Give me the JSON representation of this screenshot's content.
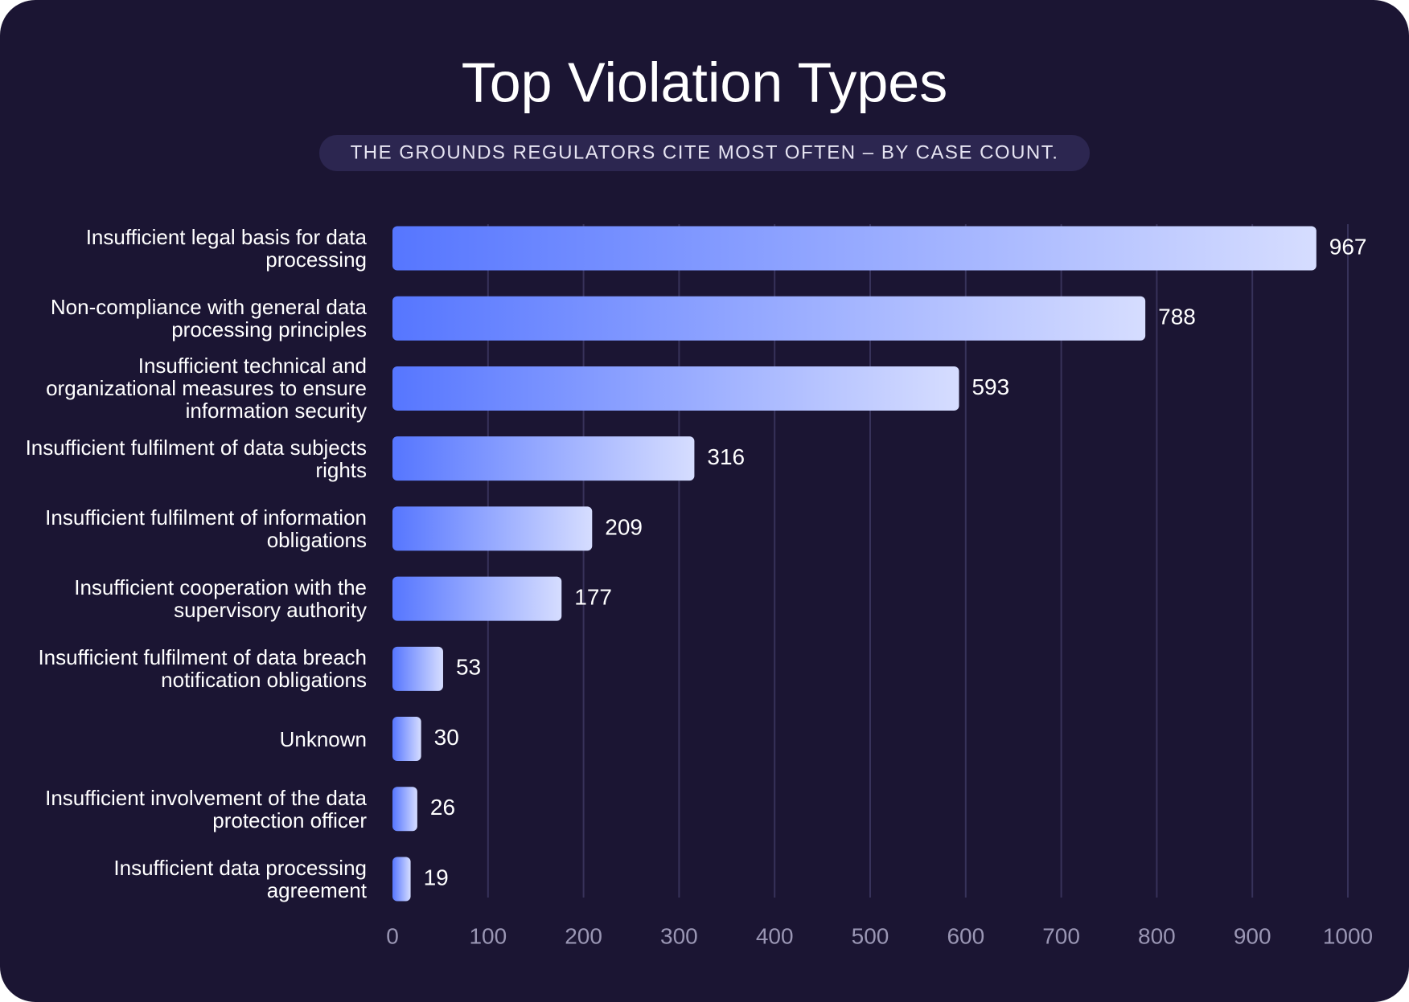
{
  "chart_data": {
    "type": "bar",
    "orientation": "horizontal",
    "title": "Top Violation Types",
    "subtitle": "THE GROUNDS REGULATORS CITE MOST OFTEN – BY CASE COUNT.",
    "categories": [
      "Insufficient legal basis for data processing",
      "Non-compliance with general data processing principles",
      "Insufficient technical and organizational measures to ensure information security",
      "Insufficient fulfilment of data subjects rights",
      "Insufficient fulfilment of information obligations",
      "Insufficient cooperation with the supervisory authority",
      "Insufficient fulfilment of data breach notification obligations",
      "Unknown",
      "Insufficient involvement of the data protection officer",
      "Insufficient data processing agreement"
    ],
    "values": [
      967,
      788,
      593,
      316,
      209,
      177,
      53,
      30,
      26,
      19
    ],
    "gradient": [
      "#5676ff",
      "#d6ddff"
    ],
    "xlim": [
      0,
      1000
    ],
    "xticks": [
      0,
      100,
      200,
      300,
      400,
      500,
      600,
      700,
      800,
      900,
      1000
    ],
    "grid": true
  }
}
